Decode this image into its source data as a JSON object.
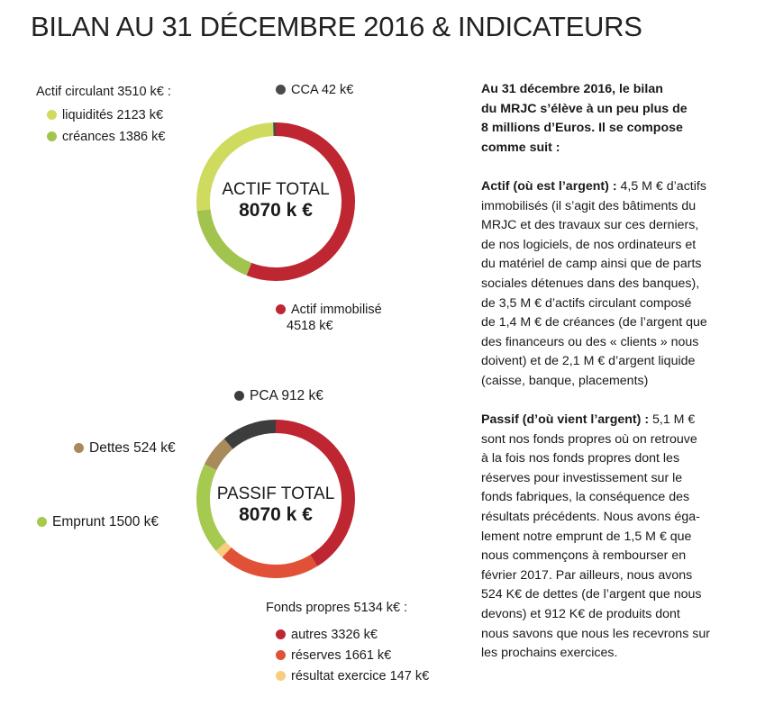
{
  "title": "BILAN AU 31 DÉCEMBRE 2016 & INDICATEURS",
  "chart_data": [
    {
      "type": "pie",
      "variant": "donut",
      "center_label": "ACTIF TOTAL",
      "center_value": "8070 k €",
      "group_label": "Actif circulant 3510 k€ :",
      "slices": [
        {
          "name": "Actif immobilisé",
          "value": 4518,
          "label_line1": "Actif immobilisé",
          "label_line2": "4518 k€",
          "color": "#be2632"
        },
        {
          "name": "créances",
          "value": 1386,
          "label": "créances 1386 k€",
          "color": "#a2c44e"
        },
        {
          "name": "liquidités",
          "value": 2123,
          "label": "liquidités 2123 k€",
          "color": "#cfdb5f"
        },
        {
          "name": "CCA",
          "value": 42,
          "label": "CCA 42 k€",
          "color": "#4a4a4a"
        }
      ]
    },
    {
      "type": "pie",
      "variant": "donut",
      "center_label": "PASSIF TOTAL",
      "center_value": "8070 k €",
      "group_label": "Fonds propres 5134 k€ :",
      "slices": [
        {
          "name": "autres",
          "value": 3326,
          "label": "autres 3326 k€",
          "color": "#be2632"
        },
        {
          "name": "réserves",
          "value": 1661,
          "label": "réserves 1661 k€",
          "color": "#e05138"
        },
        {
          "name": "résultat exercice",
          "value": 147,
          "label": "résultat exercice 147 k€",
          "color": "#f8cd7f"
        },
        {
          "name": "Emprunt",
          "value": 1500,
          "label": "Emprunt 1500 k€",
          "color": "#a6c94f"
        },
        {
          "name": "Dettes",
          "value": 524,
          "label": "Dettes 524 k€",
          "color": "#a98a5a"
        },
        {
          "name": "PCA",
          "value": 912,
          "label": "PCA 912 k€",
          "color": "#3d3d3d"
        }
      ]
    }
  ],
  "text": {
    "intro": [
      "Au 31 décembre 2016, le bilan",
      "du MRJC s’élève à un peu plus de",
      "8 millions d’Euros. Il se compose",
      "comme suit :"
    ],
    "actif_heading": "Actif (où est l’argent) :",
    "actif_first": " 4,5 M € d’actifs",
    "actif_lines": [
      "immobilisés (il s’agit des bâtiments du",
      "MRJC et des travaux sur ces derniers,",
      "de nos logiciels, de nos ordinateurs et",
      "du matériel de camp  ainsi que de parts",
      "sociales détenues dans des banques),",
      "de 3,5 M € d’actifs circulant composé",
      "de 1,4 M € de créances (de l’argent que",
      "des financeurs ou des « clients » nous",
      "doivent) et de 2,1 M € d’argent liquide",
      "(caisse, banque, placements)"
    ],
    "passif_heading": "Passif (d’où vient l’argent) :",
    "passif_first": " 5,1 M €",
    "passif_lines": [
      "sont nos fonds propres où on retrouve",
      "à la fois nos fonds propres dont les",
      "réserves pour investissement sur le",
      "fonds fabriques, la conséquence des",
      "résultats précédents. Nous avons éga-",
      "lement notre emprunt de 1,5 M € que",
      "nous commençons à rembourser en",
      "février 2017. Par ailleurs, nous avons",
      "524 K€ de dettes (de l’argent que nous",
      "devons) et 912 K€ de produits dont",
      "nous savons que nous les recevrons sur",
      "les prochains exercices."
    ]
  }
}
